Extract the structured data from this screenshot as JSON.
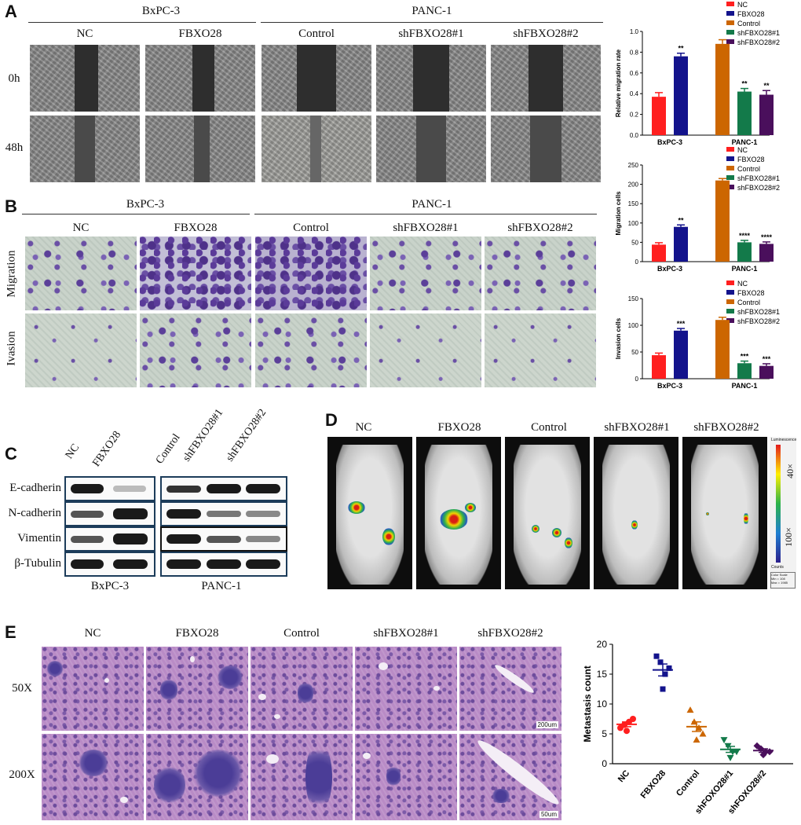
{
  "panelA": {
    "label": "A",
    "groups": [
      "BxPC-3",
      "PANC-1"
    ],
    "columns": [
      "NC",
      "FBXO28",
      "Control",
      "shFBXO28#1",
      "shFBXO28#2"
    ],
    "rows": [
      "0h",
      "48h"
    ]
  },
  "panelB": {
    "label": "B",
    "groups": [
      "BxPC-3",
      "PANC-1"
    ],
    "columns": [
      "NC",
      "FBXO28",
      "Control",
      "shFBXO28#1",
      "shFBXO28#2"
    ],
    "rows": [
      "Migration",
      "Ivasion"
    ]
  },
  "panelC": {
    "label": "C",
    "lanes": [
      "NC",
      "FBXO28",
      "Control",
      "shFBXO28#1",
      "shFBXO28#2"
    ],
    "proteins": [
      "E-cadherin",
      "N-cadherin",
      "Vimentin",
      "β-Tubulin"
    ],
    "cells": [
      "BxPC-3",
      "PANC-1"
    ]
  },
  "panelD": {
    "label": "D",
    "columns": [
      "NC",
      "FBXO28",
      "Control",
      "shFBXO28#1",
      "shFBXO28#2"
    ],
    "scale_top": "40×",
    "scale_bottom": "100×",
    "scale_title": "Luminescence",
    "scale_foot": "Counts",
    "scale_box": [
      "Color Scale",
      "Min = 108",
      "Max = 1985"
    ]
  },
  "panelE": {
    "label": "E",
    "columns": [
      "NC",
      "FBXO28",
      "Control",
      "shFBXO28#1",
      "shFBXO28#2"
    ],
    "rows": [
      "50X",
      "200X"
    ],
    "scalebars": [
      "200um",
      "50um"
    ]
  },
  "colors": {
    "NC": "#ff1f1f",
    "FBXO28": "#13138c",
    "Control": "#cc6600",
    "sh1": "#137a4a",
    "sh2": "#4a0f5c"
  },
  "chart_data": [
    {
      "type": "bar",
      "ylabel": "Relative migration rate",
      "groups": [
        "BxPC-3",
        "PANC-1"
      ],
      "legend": [
        "NC",
        "FBXO28",
        "Control",
        "shFBXO28#1",
        "shFBXO28#2"
      ],
      "ylim": [
        0,
        1.0
      ],
      "yticks": [
        "0.0",
        "0.2",
        "0.4",
        "0.6",
        "0.8",
        "1.0"
      ],
      "bars": [
        {
          "group": "BxPC-3",
          "name": "NC",
          "value": 0.37,
          "err": 0.04,
          "sig": ""
        },
        {
          "group": "BxPC-3",
          "name": "FBXO28",
          "value": 0.76,
          "err": 0.03,
          "sig": "**"
        },
        {
          "group": "PANC-1",
          "name": "Control",
          "value": 0.88,
          "err": 0.04,
          "sig": ""
        },
        {
          "group": "PANC-1",
          "name": "shFBXO28#1",
          "value": 0.42,
          "err": 0.03,
          "sig": "**"
        },
        {
          "group": "PANC-1",
          "name": "shFBXO28#2",
          "value": 0.39,
          "err": 0.04,
          "sig": "**"
        }
      ]
    },
    {
      "type": "bar",
      "ylabel": "Migration cells",
      "groups": [
        "BxPC-3",
        "PANC-1"
      ],
      "legend": [
        "NC",
        "FBXO28",
        "Control",
        "shFBXO28#1",
        "shFBXO28#2"
      ],
      "ylim": [
        0,
        250
      ],
      "yticks": [
        "0",
        "50",
        "100",
        "150",
        "200",
        "250"
      ],
      "bars": [
        {
          "group": "BxPC-3",
          "name": "NC",
          "value": 44,
          "err": 5,
          "sig": ""
        },
        {
          "group": "BxPC-3",
          "name": "FBXO28",
          "value": 90,
          "err": 5,
          "sig": "**"
        },
        {
          "group": "PANC-1",
          "name": "Control",
          "value": 210,
          "err": 5,
          "sig": ""
        },
        {
          "group": "PANC-1",
          "name": "shFBXO28#1",
          "value": 50,
          "err": 5,
          "sig": "****"
        },
        {
          "group": "PANC-1",
          "name": "shFBXO28#2",
          "value": 46,
          "err": 5,
          "sig": "****"
        }
      ]
    },
    {
      "type": "bar",
      "ylabel": "Invasion cells",
      "groups": [
        "BxPC-3",
        "PANC-1"
      ],
      "legend": [
        "NC",
        "FBXO28",
        "Control",
        "shFBXO28#1",
        "shFBXO28#2"
      ],
      "ylim": [
        0,
        150
      ],
      "yticks": [
        "0",
        "50",
        "100",
        "150"
      ],
      "bars": [
        {
          "group": "BxPC-3",
          "name": "NC",
          "value": 44,
          "err": 4,
          "sig": ""
        },
        {
          "group": "BxPC-3",
          "name": "FBXO28",
          "value": 90,
          "err": 4,
          "sig": "***"
        },
        {
          "group": "PANC-1",
          "name": "Control",
          "value": 110,
          "err": 5,
          "sig": ""
        },
        {
          "group": "PANC-1",
          "name": "shFBXO28#1",
          "value": 29,
          "err": 4,
          "sig": "***"
        },
        {
          "group": "PANC-1",
          "name": "shFBXO28#2",
          "value": 24,
          "err": 4,
          "sig": "***"
        }
      ]
    },
    {
      "type": "scatter",
      "ylabel": "Metastasis count",
      "ylim": [
        0,
        20
      ],
      "yticks": [
        "0",
        "5",
        "10",
        "15",
        "20"
      ],
      "categories": [
        "NC",
        "FBXO28",
        "Control",
        "shFOXO28#1",
        "shFOXO28#2"
      ],
      "series": [
        {
          "name": "NC",
          "marker": "circle",
          "points": [
            6,
            6.5,
            7,
            7.5,
            5.5
          ],
          "mean": 6.6,
          "sem": 0.4
        },
        {
          "name": "FBXO28",
          "marker": "square",
          "points": [
            18,
            17,
            15,
            16,
            12.5
          ],
          "mean": 15.7,
          "sem": 1.0
        },
        {
          "name": "Control",
          "marker": "triangle",
          "points": [
            9,
            7,
            6,
            5,
            4
          ],
          "mean": 6.2,
          "sem": 0.8
        },
        {
          "name": "shFOXO28#1",
          "marker": "triangle-down",
          "points": [
            4,
            3,
            2,
            2,
            1
          ],
          "mean": 2.4,
          "sem": 0.5
        },
        {
          "name": "shFOXO28#2",
          "marker": "diamond",
          "points": [
            3,
            2.5,
            2,
            2,
            1.5
          ],
          "mean": 2.2,
          "sem": 0.3
        }
      ]
    }
  ]
}
